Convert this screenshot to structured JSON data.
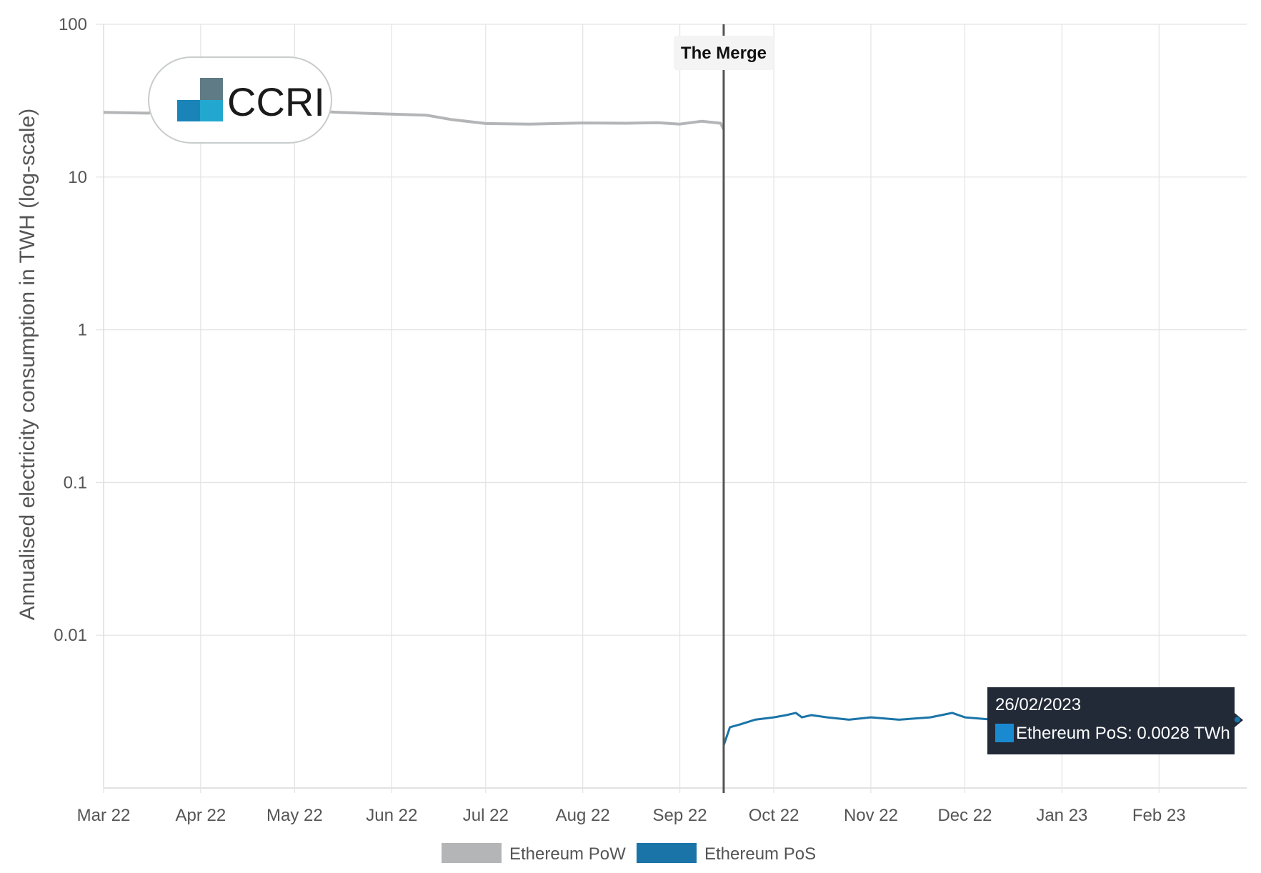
{
  "logo": {
    "text": "CCRI"
  },
  "annotation": {
    "label": "The Merge",
    "date": "2022-09-15"
  },
  "tooltip": {
    "date": "26/02/2023",
    "text": "Ethereum PoS: 0.0028 TWh"
  },
  "colors": {
    "pow": "#b3b5b7",
    "pos": "#1a74a8",
    "merge_line": "#555555",
    "grid": "#e3e3e3",
    "tooltip_bg": "#222a38"
  },
  "chart_data": {
    "type": "line",
    "title": "",
    "ylabel": "Annualised electricity consumption in TWH (log-scale)",
    "xlabel": "",
    "yscale": "log",
    "ylim": [
      0.001,
      100
    ],
    "xlim": [
      "2022-03-01",
      "2023-03-01"
    ],
    "y_ticks": [
      100,
      10,
      1,
      0.1,
      0.01
    ],
    "y_tick_labels": [
      "100",
      "10",
      "1",
      "0.1",
      "0.01"
    ],
    "x_ticks": [
      "2022-03-01",
      "2022-04-01",
      "2022-05-01",
      "2022-06-01",
      "2022-07-01",
      "2022-08-01",
      "2022-09-01",
      "2022-10-01",
      "2022-11-01",
      "2022-12-01",
      "2023-01-01",
      "2023-02-01"
    ],
    "x_tick_labels": [
      "Mar 22",
      "Apr 22",
      "May 22",
      "Jun 22",
      "Jul 22",
      "Aug 22",
      "Sep 22",
      "Oct 22",
      "Nov 22",
      "Dec 22",
      "Jan 23",
      "Feb 23"
    ],
    "grid": true,
    "legend": "bottom-center",
    "series": [
      {
        "name": "Ethereum PoW",
        "x": [
          "2022-03-01",
          "2022-03-15",
          "2022-04-01",
          "2022-04-15",
          "2022-05-01",
          "2022-05-15",
          "2022-06-01",
          "2022-06-12",
          "2022-06-20",
          "2022-07-01",
          "2022-07-15",
          "2022-08-01",
          "2022-08-15",
          "2022-08-25",
          "2022-09-01",
          "2022-09-08",
          "2022-09-14",
          "2022-09-15"
        ],
        "values": [
          26.5,
          26.2,
          27.8,
          28.5,
          27.5,
          26.5,
          25.8,
          25.4,
          23.8,
          22.4,
          22.2,
          22.6,
          22.5,
          22.7,
          22.2,
          23.2,
          22.5,
          20.5
        ]
      },
      {
        "name": "Ethereum PoS",
        "x": [
          "2022-09-15",
          "2022-09-17",
          "2022-09-20",
          "2022-09-25",
          "2022-10-01",
          "2022-10-05",
          "2022-10-08",
          "2022-10-10",
          "2022-10-13",
          "2022-10-18",
          "2022-10-25",
          "2022-11-01",
          "2022-11-10",
          "2022-11-20",
          "2022-11-27",
          "2022-12-01",
          "2022-12-10",
          "2022-12-20",
          "2023-01-01",
          "2023-01-15",
          "2023-02-01",
          "2023-02-15",
          "2023-02-24",
          "2023-02-26"
        ],
        "values": [
          0.0019,
          0.0025,
          0.0026,
          0.0028,
          0.0029,
          0.003,
          0.0031,
          0.0029,
          0.003,
          0.0029,
          0.0028,
          0.0029,
          0.0028,
          0.0029,
          0.0031,
          0.0029,
          0.0028,
          0.0028,
          0.0028,
          0.0028,
          0.0028,
          0.0027,
          0.0027,
          0.0028
        ]
      }
    ]
  }
}
